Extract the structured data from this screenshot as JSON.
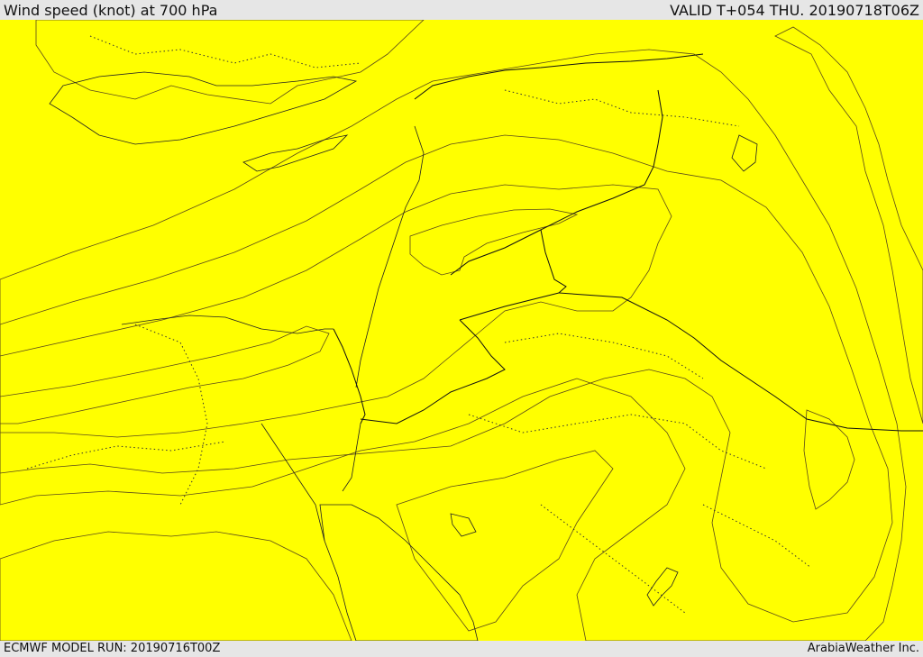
{
  "header": {
    "title": "Wind speed (knot) at 700 hPa",
    "valid": "VALID T+054 THU. 20190718T06Z"
  },
  "footer": {
    "model_run": "ECMWF MODEL RUN: 20190716T00Z",
    "credit": "ArabiaWeather Inc."
  },
  "colors": {
    "calm": "#ffdfa8",
    "band1": "#ffff00",
    "band2": "#ffd700",
    "band3": "#ffc300",
    "band4": "#ffa500",
    "band5": "#ff7b00",
    "water_no_data": "#ffffff"
  }
}
